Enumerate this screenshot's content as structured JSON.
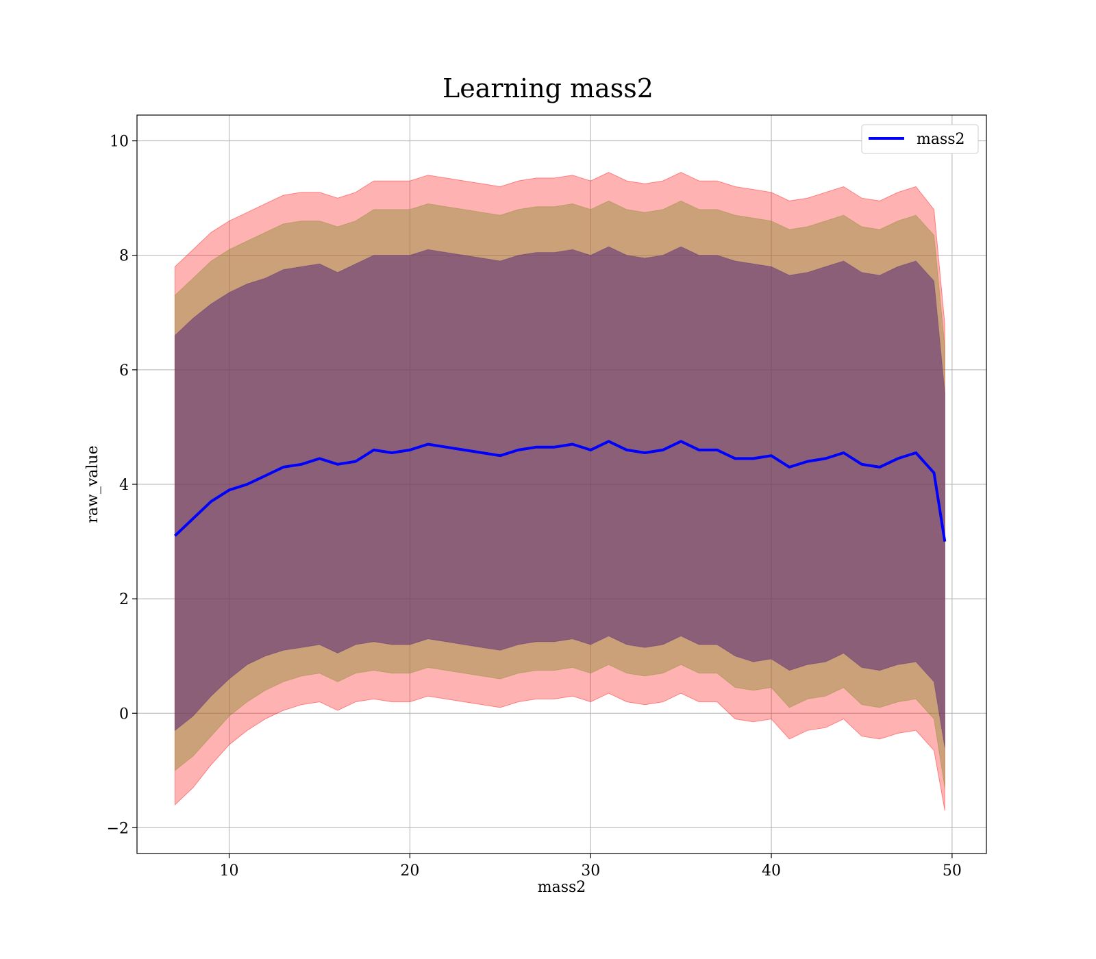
{
  "chart_data": {
    "type": "area",
    "title": "Learning mass2",
    "xlabel": "mass2",
    "ylabel": "raw_value",
    "xlim": [
      4.9,
      51.9
    ],
    "ylim": [
      -2.45,
      10.45
    ],
    "xticks": [
      10,
      20,
      30,
      40,
      50
    ],
    "yticks": [
      -2,
      0,
      2,
      4,
      6,
      8,
      10
    ],
    "xtick_labels": [
      "10",
      "20",
      "30",
      "40",
      "50"
    ],
    "ytick_labels": [
      "−2",
      "0",
      "2",
      "4",
      "6",
      "8",
      "10"
    ],
    "grid": true,
    "legend": {
      "placement": "top-right",
      "entries": [
        "mass2"
      ]
    },
    "colors": {
      "mean_line": "#0000ff",
      "band_outer": "#ff0000",
      "band_middle": "#8c8c32",
      "band_inner": "#5a2a78",
      "grid": "#b0b0b0"
    },
    "x": [
      7.0,
      8.0,
      9.0,
      10.0,
      11.0,
      12.0,
      13.0,
      14.0,
      15.0,
      16.0,
      17.0,
      18.0,
      19.0,
      20.0,
      21.0,
      22.0,
      23.0,
      24.0,
      25.0,
      26.0,
      27.0,
      28.0,
      29.0,
      30.0,
      31.0,
      32.0,
      33.0,
      34.0,
      35.0,
      36.0,
      37.0,
      38.0,
      39.0,
      40.0,
      41.0,
      42.0,
      43.0,
      44.0,
      45.0,
      46.0,
      47.0,
      48.0,
      49.0,
      49.6
    ],
    "series": [
      {
        "name": "mass2",
        "values": [
          3.1,
          3.4,
          3.7,
          3.9,
          4.0,
          4.15,
          4.3,
          4.35,
          4.45,
          4.35,
          4.4,
          4.6,
          4.55,
          4.6,
          4.7,
          4.65,
          4.6,
          4.55,
          4.5,
          4.6,
          4.65,
          4.65,
          4.7,
          4.6,
          4.75,
          4.6,
          4.55,
          4.6,
          4.75,
          4.6,
          4.6,
          4.45,
          4.45,
          4.5,
          4.3,
          4.4,
          4.45,
          4.55,
          4.35,
          4.3,
          4.45,
          4.55,
          4.2,
          3.0
        ]
      }
    ],
    "bands": [
      {
        "lower": [
          -1.6,
          -1.3,
          -0.9,
          -0.55,
          -0.3,
          -0.1,
          0.05,
          0.15,
          0.2,
          0.05,
          0.2,
          0.25,
          0.2,
          0.2,
          0.3,
          0.25,
          0.2,
          0.15,
          0.1,
          0.2,
          0.25,
          0.25,
          0.3,
          0.2,
          0.35,
          0.2,
          0.15,
          0.2,
          0.35,
          0.2,
          0.2,
          -0.1,
          -0.15,
          -0.1,
          -0.45,
          -0.3,
          -0.25,
          -0.1,
          -0.4,
          -0.45,
          -0.35,
          -0.3,
          -0.65,
          -1.7
        ],
        "upper": [
          7.8,
          8.1,
          8.4,
          8.6,
          8.75,
          8.9,
          9.05,
          9.1,
          9.1,
          9.0,
          9.1,
          9.3,
          9.3,
          9.3,
          9.4,
          9.35,
          9.3,
          9.25,
          9.2,
          9.3,
          9.35,
          9.35,
          9.4,
          9.3,
          9.45,
          9.3,
          9.25,
          9.3,
          9.45,
          9.3,
          9.3,
          9.2,
          9.15,
          9.1,
          8.95,
          9.0,
          9.1,
          9.2,
          9.0,
          8.95,
          9.1,
          9.2,
          8.8,
          6.8
        ]
      },
      {
        "lower": [
          -1.0,
          -0.75,
          -0.4,
          -0.05,
          0.2,
          0.4,
          0.55,
          0.65,
          0.7,
          0.55,
          0.7,
          0.75,
          0.7,
          0.7,
          0.8,
          0.75,
          0.7,
          0.65,
          0.6,
          0.7,
          0.75,
          0.75,
          0.8,
          0.7,
          0.85,
          0.7,
          0.65,
          0.7,
          0.85,
          0.7,
          0.7,
          0.45,
          0.4,
          0.45,
          0.1,
          0.25,
          0.3,
          0.45,
          0.15,
          0.1,
          0.2,
          0.25,
          -0.1,
          -1.3
        ],
        "upper": [
          7.3,
          7.6,
          7.9,
          8.1,
          8.25,
          8.4,
          8.55,
          8.6,
          8.6,
          8.5,
          8.6,
          8.8,
          8.8,
          8.8,
          8.9,
          8.85,
          8.8,
          8.75,
          8.7,
          8.8,
          8.85,
          8.85,
          8.9,
          8.8,
          8.95,
          8.8,
          8.75,
          8.8,
          8.95,
          8.8,
          8.8,
          8.7,
          8.65,
          8.6,
          8.45,
          8.5,
          8.6,
          8.7,
          8.5,
          8.45,
          8.6,
          8.7,
          8.35,
          6.4
        ]
      },
      {
        "lower": [
          -0.3,
          -0.05,
          0.3,
          0.6,
          0.85,
          1.0,
          1.1,
          1.15,
          1.2,
          1.05,
          1.2,
          1.25,
          1.2,
          1.2,
          1.3,
          1.25,
          1.2,
          1.15,
          1.1,
          1.2,
          1.25,
          1.25,
          1.3,
          1.2,
          1.35,
          1.2,
          1.15,
          1.2,
          1.35,
          1.2,
          1.2,
          1.0,
          0.9,
          0.95,
          0.75,
          0.85,
          0.9,
          1.05,
          0.8,
          0.75,
          0.85,
          0.9,
          0.55,
          -0.6
        ],
        "upper": [
          6.6,
          6.9,
          7.15,
          7.35,
          7.5,
          7.6,
          7.75,
          7.8,
          7.85,
          7.7,
          7.85,
          8.0,
          8.0,
          8.0,
          8.1,
          8.05,
          8.0,
          7.95,
          7.9,
          8.0,
          8.05,
          8.05,
          8.1,
          8.0,
          8.15,
          8.0,
          7.95,
          8.0,
          8.15,
          8.0,
          8.0,
          7.9,
          7.85,
          7.8,
          7.65,
          7.7,
          7.8,
          7.9,
          7.7,
          7.65,
          7.8,
          7.9,
          7.55,
          5.6
        ]
      }
    ]
  }
}
